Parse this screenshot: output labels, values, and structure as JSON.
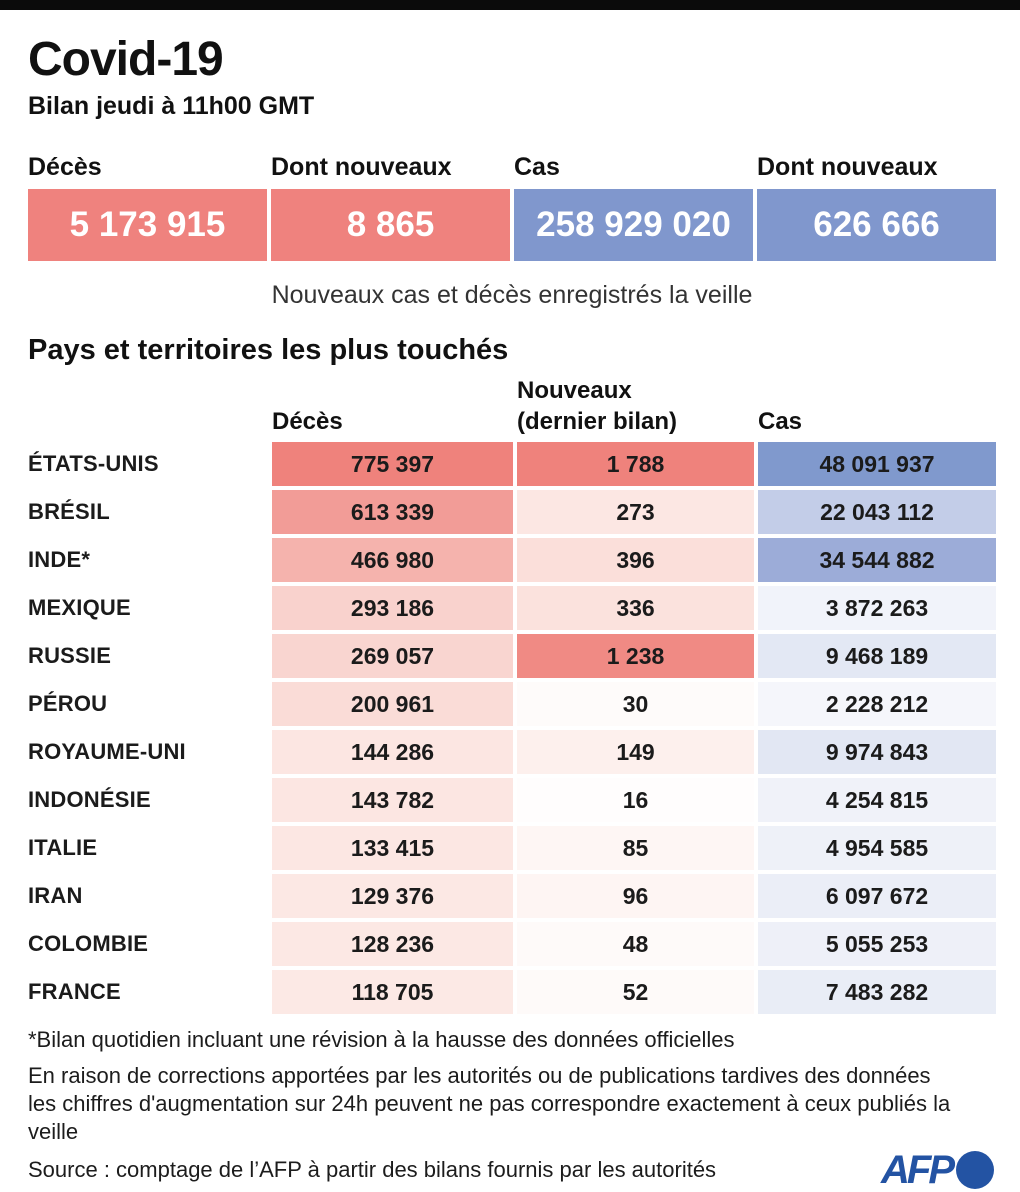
{
  "header": {
    "title": "Covid-19",
    "subtitle": "Bilan jeudi à 11h00 GMT"
  },
  "summary": {
    "items": [
      {
        "label": "Décès",
        "value": "5 173 915",
        "bg": "#ef827e"
      },
      {
        "label": "Dont nouveaux",
        "value": "8 865",
        "bg": "#ef827e"
      },
      {
        "label": "Cas",
        "value": "258 929 020",
        "bg": "#8097cd"
      },
      {
        "label": "Dont nouveaux",
        "value": "626 666",
        "bg": "#8097cd"
      }
    ],
    "caption": "Nouveaux cas et décès enregistrés la veille"
  },
  "section": {
    "title": "Pays et territoires les plus touchés",
    "col_deces": "Décès",
    "col_nouveaux_line1": "Nouveaux",
    "col_nouveaux_line2": "(dernier bilan)",
    "col_cas": "Cas"
  },
  "table_rows": [
    {
      "country": "ÉTATS-UNIS",
      "deces": "775 397",
      "nouveaux": "1 788",
      "cas": "48 091 937",
      "deces_bg": "#ef827c",
      "nouveaux_bg": "#ef827c",
      "cas_bg": "#8099cd"
    },
    {
      "country": "BRÉSIL",
      "deces": "613 339",
      "nouveaux": "273",
      "cas": "22 043 112",
      "deces_bg": "#f29c97",
      "nouveaux_bg": "#fce7e3",
      "cas_bg": "#c3cde8"
    },
    {
      "country": "INDE*",
      "deces": "466 980",
      "nouveaux": "396",
      "cas": "34 544 882",
      "deces_bg": "#f5b3ad",
      "nouveaux_bg": "#fbdfda",
      "cas_bg": "#9cacd8"
    },
    {
      "country": "MEXIQUE",
      "deces": "293 186",
      "nouveaux": "336",
      "cas": "3 872 263",
      "deces_bg": "#f9d2cd",
      "nouveaux_bg": "#fbe2dd",
      "cas_bg": "#f1f3fa"
    },
    {
      "country": "RUSSIE",
      "deces": "269 057",
      "nouveaux": "1 238",
      "cas": "9 468 189",
      "deces_bg": "#f9d5d0",
      "nouveaux_bg": "#f08a84",
      "cas_bg": "#e3e8f4"
    },
    {
      "country": "PÉROU",
      "deces": "200 961",
      "nouveaux": "30",
      "cas": "2 228 212",
      "deces_bg": "#fadcd7",
      "nouveaux_bg": "#fefbfa",
      "cas_bg": "#f5f6fb"
    },
    {
      "country": "ROYAUME-UNI",
      "deces": "144 286",
      "nouveaux": "149",
      "cas": "9 974 843",
      "deces_bg": "#fce6e2",
      "nouveaux_bg": "#fdf0ed",
      "cas_bg": "#e2e7f3"
    },
    {
      "country": "INDONÉSIE",
      "deces": "143 782",
      "nouveaux": "16",
      "cas": "4 254 815",
      "deces_bg": "#fce6e2",
      "nouveaux_bg": "#fffdfd",
      "cas_bg": "#f0f2f9"
    },
    {
      "country": "ITALIE",
      "deces": "133 415",
      "nouveaux": "85",
      "cas": "4 954 585",
      "deces_bg": "#fce7e3",
      "nouveaux_bg": "#fef6f4",
      "cas_bg": "#eef1f8"
    },
    {
      "country": "IRAN",
      "deces": "129 376",
      "nouveaux": "96",
      "cas": "6 097 672",
      "deces_bg": "#fce8e4",
      "nouveaux_bg": "#fef5f3",
      "cas_bg": "#ebeef7"
    },
    {
      "country": "COLOMBIE",
      "deces": "128 236",
      "nouveaux": "48",
      "cas": "5 055 253",
      "deces_bg": "#fce8e4",
      "nouveaux_bg": "#fefaf9",
      "cas_bg": "#eef0f8"
    },
    {
      "country": "FRANCE",
      "deces": "118 705",
      "nouveaux": "52",
      "cas": "7 483 282",
      "deces_bg": "#fce9e5",
      "nouveaux_bg": "#fefaf9",
      "cas_bg": "#e9edf6"
    }
  ],
  "footnotes": {
    "line1": "*Bilan quotidien incluant une révision à la hausse des données officielles",
    "line2": "En raison de corrections apportées par les autorités ou de publications tardives des données",
    "line3": "les chiffres d'augmentation sur 24h peuvent ne pas correspondre exactement à ceux publiés la veille",
    "source": "Source : comptage de l’AFP à partir des bilans fournis par les autorités"
  },
  "logo": {
    "text": "AFP",
    "color": "#2353a3"
  },
  "colors": {
    "deaths_red": "#ef827e",
    "cases_blue": "#8097cd",
    "afp_blue": "#2353a3"
  },
  "chart_data": {
    "type": "table",
    "title": "Covid-19 — Bilan jeudi à 11h00 GMT",
    "totals": {
      "deces": 5173915,
      "deces_nouveaux": 8865,
      "cas": 258929020,
      "cas_nouveaux": 626666
    },
    "columns": [
      "Pays",
      "Décès",
      "Nouveaux (dernier bilan)",
      "Cas"
    ],
    "rows": [
      [
        "ÉTATS-UNIS",
        775397,
        1788,
        48091937
      ],
      [
        "BRÉSIL",
        613339,
        273,
        22043112
      ],
      [
        "INDE*",
        466980,
        396,
        34544882
      ],
      [
        "MEXIQUE",
        293186,
        336,
        3872263
      ],
      [
        "RUSSIE",
        269057,
        1238,
        9468189
      ],
      [
        "PÉROU",
        200961,
        30,
        2228212
      ],
      [
        "ROYAUME-UNI",
        144286,
        149,
        9974843
      ],
      [
        "INDONÉSIE",
        143782,
        16,
        4254815
      ],
      [
        "ITALIE",
        133415,
        85,
        4954585
      ],
      [
        "IRAN",
        129376,
        96,
        6097672
      ],
      [
        "COLOMBIE",
        128236,
        48,
        5055253
      ],
      [
        "FRANCE",
        118705,
        52,
        7483282
      ]
    ],
    "legend": "cell shading encodes magnitude: red = deaths, blue = cases",
    "caption": "Nouveaux cas et décès enregistrés la veille"
  }
}
